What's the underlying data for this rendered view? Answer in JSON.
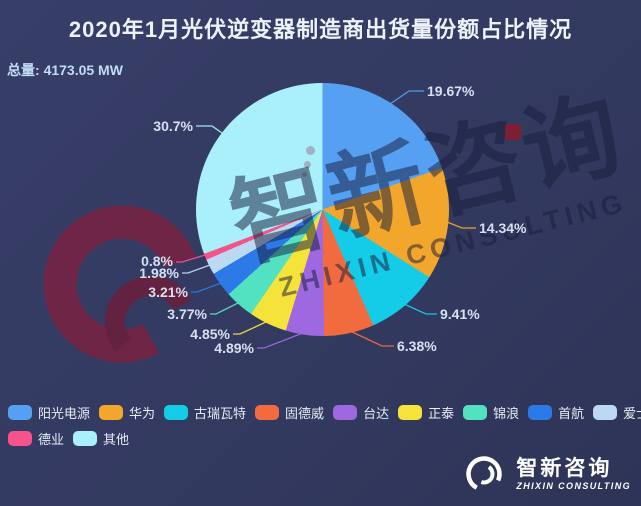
{
  "title": "2020年1月光伏逆变器制造商出货量份额占比情况",
  "total": {
    "label": "总量:",
    "value": "4173.05 MW"
  },
  "chart_data": {
    "type": "pie",
    "title": "2020年1月光伏逆变器制造商出货量份额占比情况",
    "total_mw": 4173.05,
    "legend_position": "bottom",
    "slices": [
      {
        "name": "阳光电源",
        "value": 19.67,
        "label": "19.67%",
        "color": "#55A0F2"
      },
      {
        "name": "华为",
        "value": 14.34,
        "label": "14.34%",
        "color": "#F2A62B"
      },
      {
        "name": "古瑞瓦特",
        "value": 9.41,
        "label": "9.41%",
        "color": "#14CBE8"
      },
      {
        "name": "固德威",
        "value": 6.38,
        "label": "6.38%",
        "color": "#F26B3F"
      },
      {
        "name": "台达",
        "value": 4.89,
        "label": "4.89%",
        "color": "#9D68E0"
      },
      {
        "name": "正泰",
        "value": 4.85,
        "label": "4.85%",
        "color": "#F6E339"
      },
      {
        "name": "锦浪",
        "value": 3.77,
        "label": "3.77%",
        "color": "#52E2C2"
      },
      {
        "name": "首航",
        "value": 3.21,
        "label": "3.21%",
        "color": "#2C7AE8"
      },
      {
        "name": "爱士惟",
        "value": 1.98,
        "label": "1.98%",
        "color": "#BCD9F2"
      },
      {
        "name": "德业",
        "value": 0.8,
        "label": "0.8%",
        "color": "#F5538A"
      },
      {
        "name": "其他",
        "value": 30.7,
        "label": "30.7%",
        "color": "#A9F0FA"
      }
    ]
  },
  "watermark": {
    "cn": "智新咨询",
    "en": "ZHIXIN CONSULTING",
    "accent_red": "#8C1A2B",
    "swoosh_red": "#7E2040"
  },
  "footer_logo": {
    "cn": "智新咨询",
    "en": "ZHIXIN CONSULTING"
  },
  "colors": {
    "background": "#333A60",
    "title_text": "#EDF1F8",
    "label_text": "#D7E0F0",
    "total_text": "#C3DCF5"
  }
}
